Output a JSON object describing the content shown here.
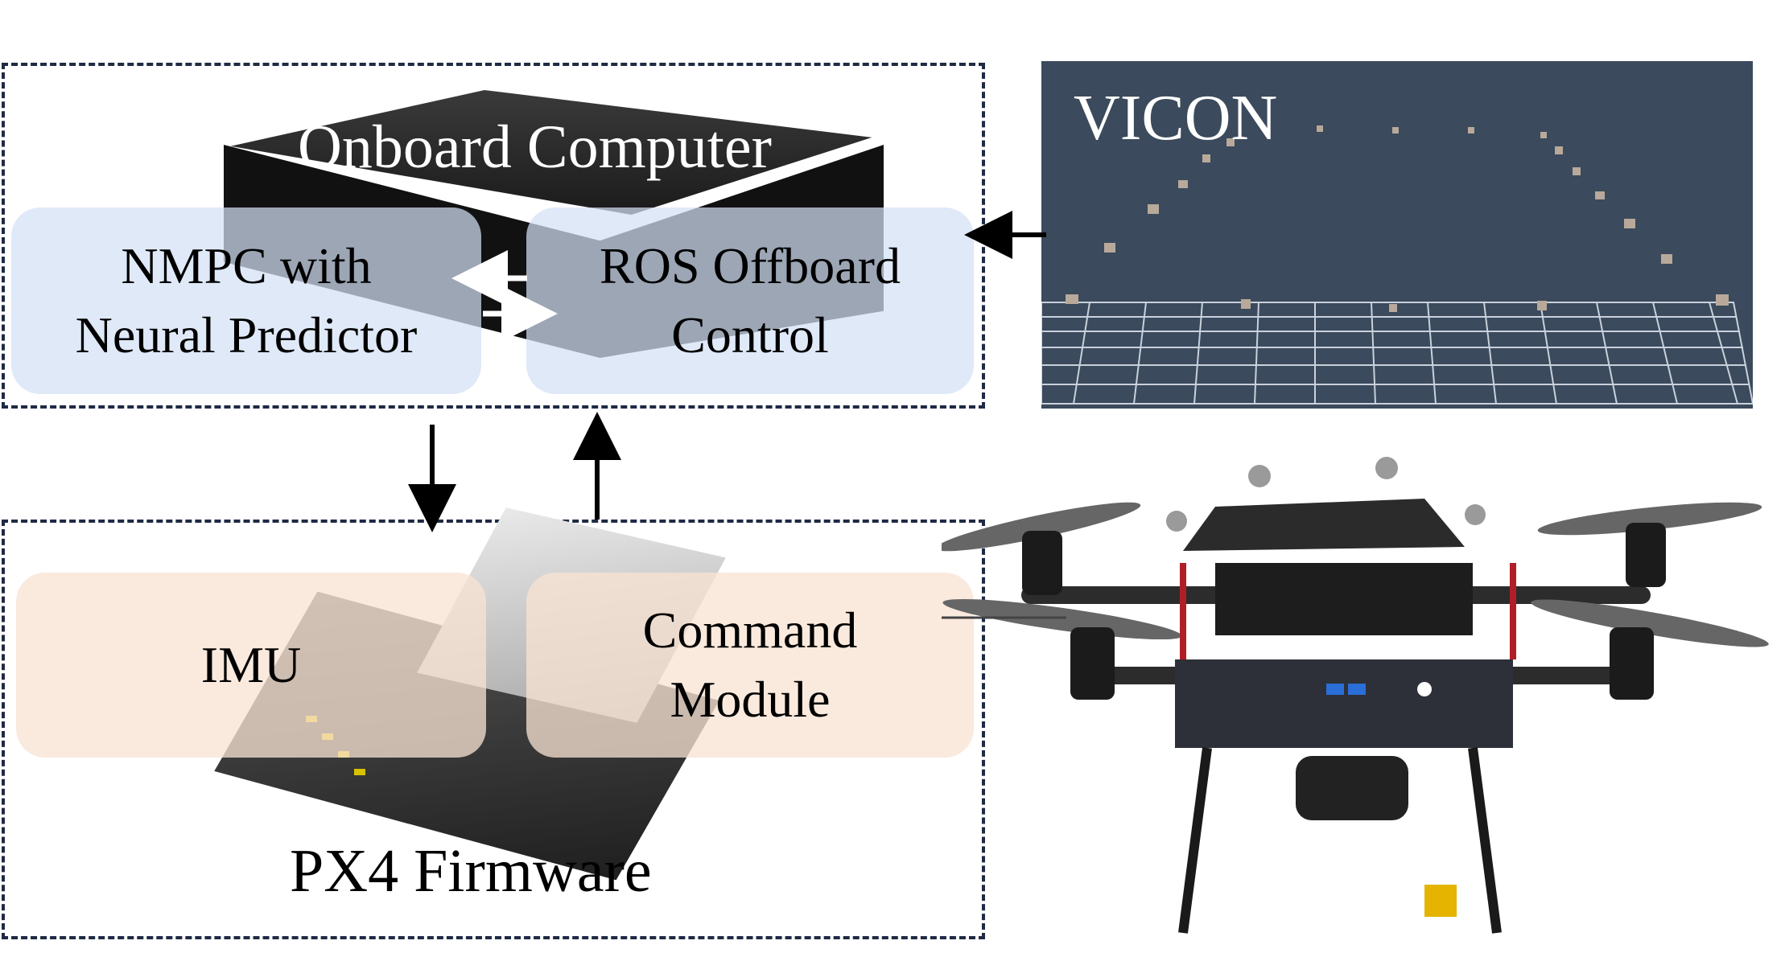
{
  "diagram": {
    "onboard": {
      "title": "Onboard Computer",
      "left_block": "NMPC with\nNeural Predictor",
      "right_block": "ROS Offboard\nControl"
    },
    "px4": {
      "title": "PX4 Firmware",
      "left_block": "IMU",
      "right_block": "Command\nModule"
    },
    "vicon": {
      "label": "VICON"
    }
  },
  "colors": {
    "dash_border": "#1f2a44",
    "blue_panel": "#d2e1f5",
    "peach_panel": "#f8e2d2",
    "vicon_bg": "#3b4a5c"
  }
}
